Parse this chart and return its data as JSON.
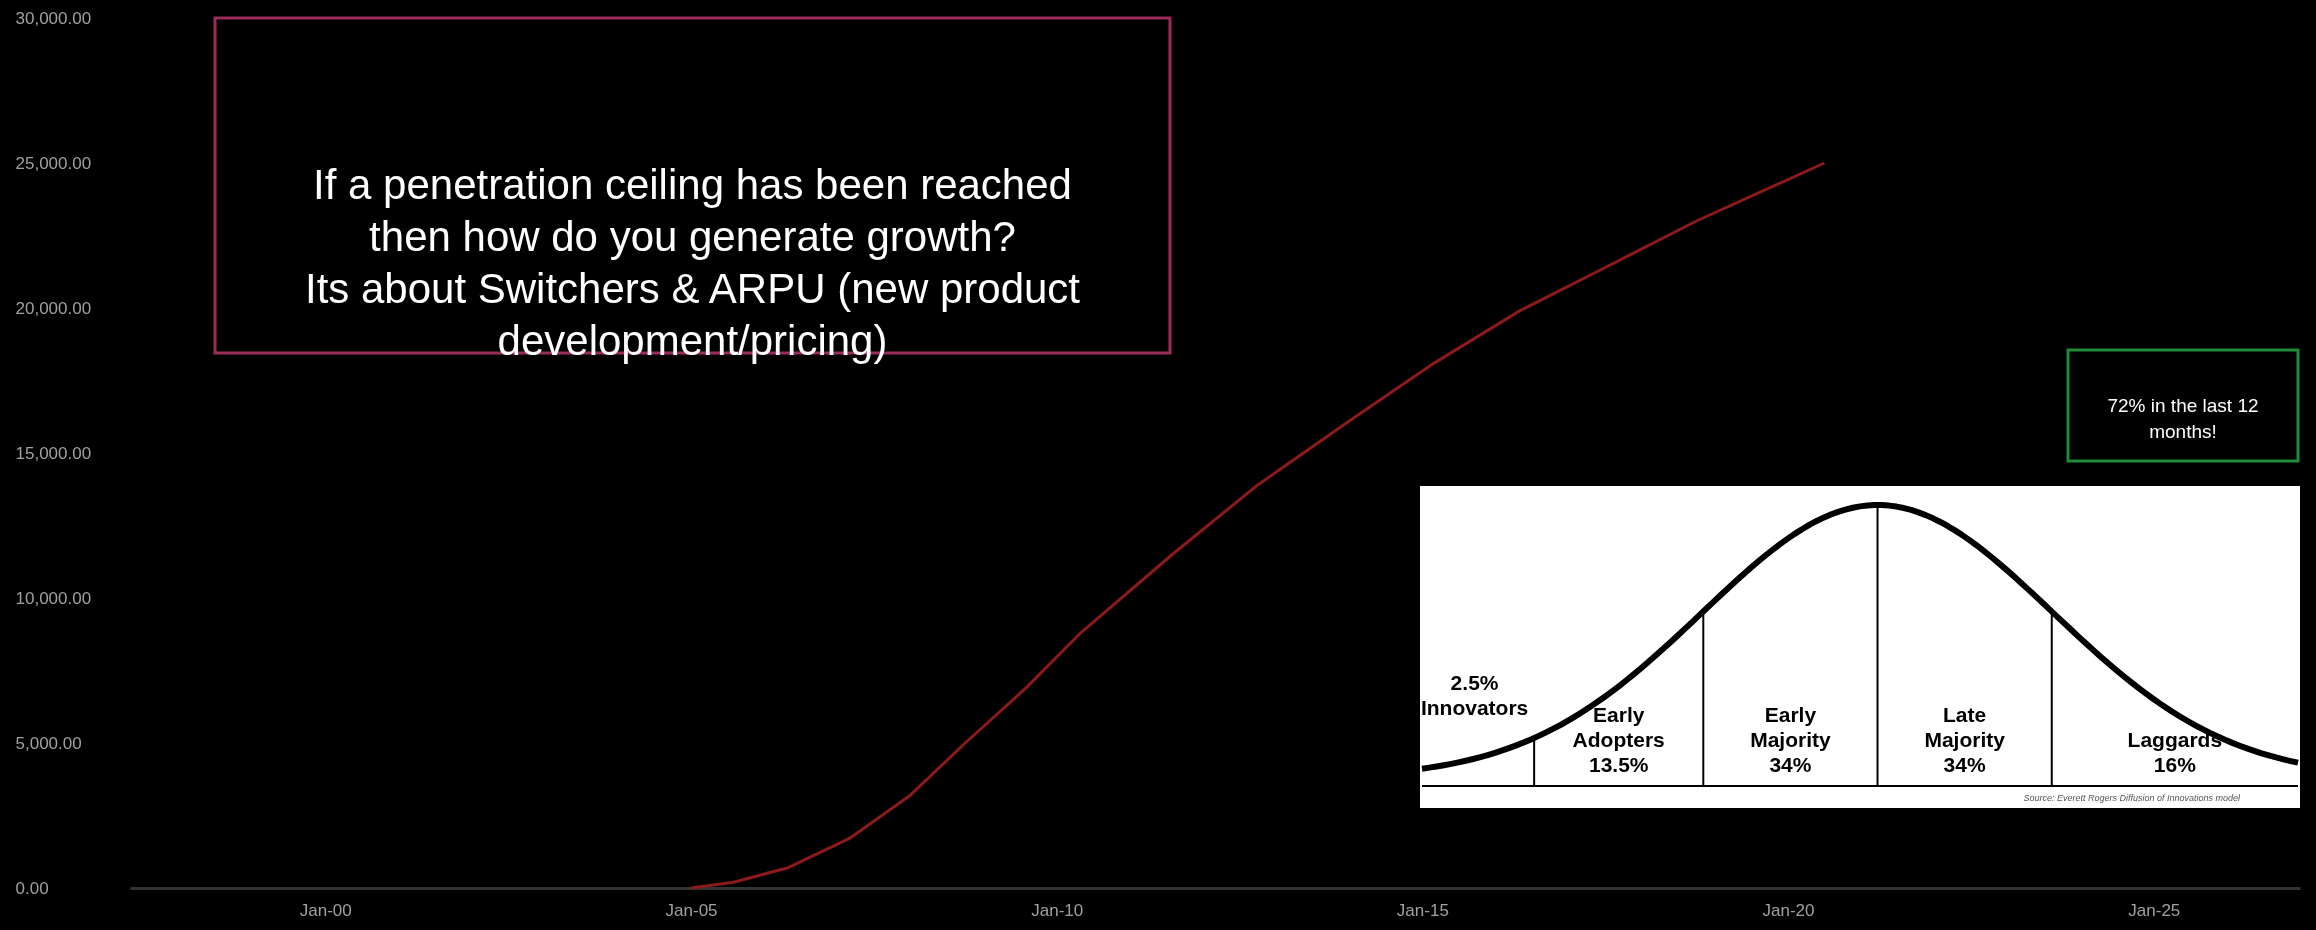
{
  "chart_data": [
    {
      "type": "line",
      "x": [
        "2005-01",
        "2005-08",
        "2006-05",
        "2007-03",
        "2008-01",
        "2008-10",
        "2009-08",
        "2010-05",
        "2011-08",
        "2012-10",
        "2014-01",
        "2015-03",
        "2016-05",
        "2017-08",
        "2018-10",
        "2020-07"
      ],
      "values": [
        0,
        200,
        700,
        1700,
        3200,
        5000,
        6900,
        8800,
        11500,
        13900,
        16100,
        18100,
        19900,
        21500,
        23000,
        25000
      ],
      "color": "#8b1a1a",
      "xlim": [
        "1997-05",
        "2027-01"
      ],
      "xticks": [
        {
          "value": "2000-01",
          "label": "Jan-00"
        },
        {
          "value": "2005-01",
          "label": "Jan-05"
        },
        {
          "value": "2010-01",
          "label": "Jan-10"
        },
        {
          "value": "2015-01",
          "label": "Jan-15"
        },
        {
          "value": "2020-01",
          "label": "Jan-20"
        },
        {
          "value": "2025-01",
          "label": "Jan-25"
        }
      ],
      "ylim": [
        0,
        30000
      ],
      "yticks": [
        {
          "value": 0,
          "label": "0.00"
        },
        {
          "value": 5000,
          "label": "5,000.00"
        },
        {
          "value": 10000,
          "label": "10,000.00"
        },
        {
          "value": 15000,
          "label": "15,000.00"
        },
        {
          "value": 20000,
          "label": "20,000.00"
        },
        {
          "value": 25000,
          "label": "25,000.00"
        },
        {
          "value": 30000,
          "label": "30,000.00"
        }
      ],
      "annotations": [
        "If a penetration ceiling has been reached\nthen how do you generate growth?\nIts about Switchers & ARPU (new product\ndevelopment/pricing)",
        "72% in the last 12\nmonths!"
      ]
    },
    {
      "type": "other",
      "categories": [
        "Innovators",
        "Early Adopters",
        "Early Majority",
        "Late Majority",
        "Laggards"
      ],
      "values": [
        2.5,
        13.5,
        34,
        34,
        16
      ],
      "value_labels": [
        "2.5%",
        "13.5%",
        "34%",
        "34%",
        "16%"
      ],
      "annotations": [
        "Source: Everett Rogers Diffusion of Innovations model"
      ]
    }
  ]
}
